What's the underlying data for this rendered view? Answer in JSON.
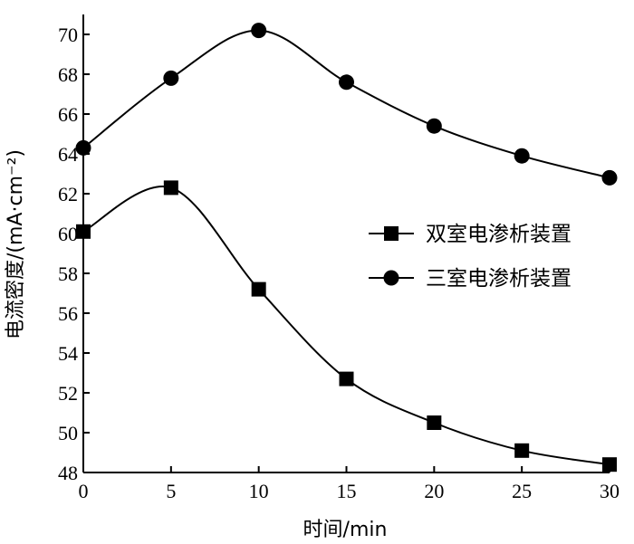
{
  "chart_data": {
    "type": "line",
    "xlabel": "时间/min",
    "ylabel": "电流密度/(mA·cm⁻²)",
    "xlim": [
      0,
      30
    ],
    "ylim": [
      48,
      71
    ],
    "xticks": [
      0,
      5,
      10,
      15,
      20,
      25,
      30
    ],
    "yticks": [
      48,
      50,
      52,
      54,
      56,
      58,
      60,
      62,
      64,
      66,
      68,
      70
    ],
    "grid": false,
    "legend_position": "right",
    "x": [
      0,
      5,
      10,
      15,
      20,
      25,
      30
    ],
    "series": [
      {
        "name": "双室电渗析装置",
        "marker": "square",
        "values": [
          60.1,
          62.3,
          57.2,
          52.7,
          50.5,
          49.1,
          48.4
        ]
      },
      {
        "name": "三室电渗析装置",
        "marker": "circle",
        "values": [
          64.3,
          67.8,
          70.2,
          67.6,
          65.4,
          63.9,
          62.8
        ]
      }
    ]
  }
}
